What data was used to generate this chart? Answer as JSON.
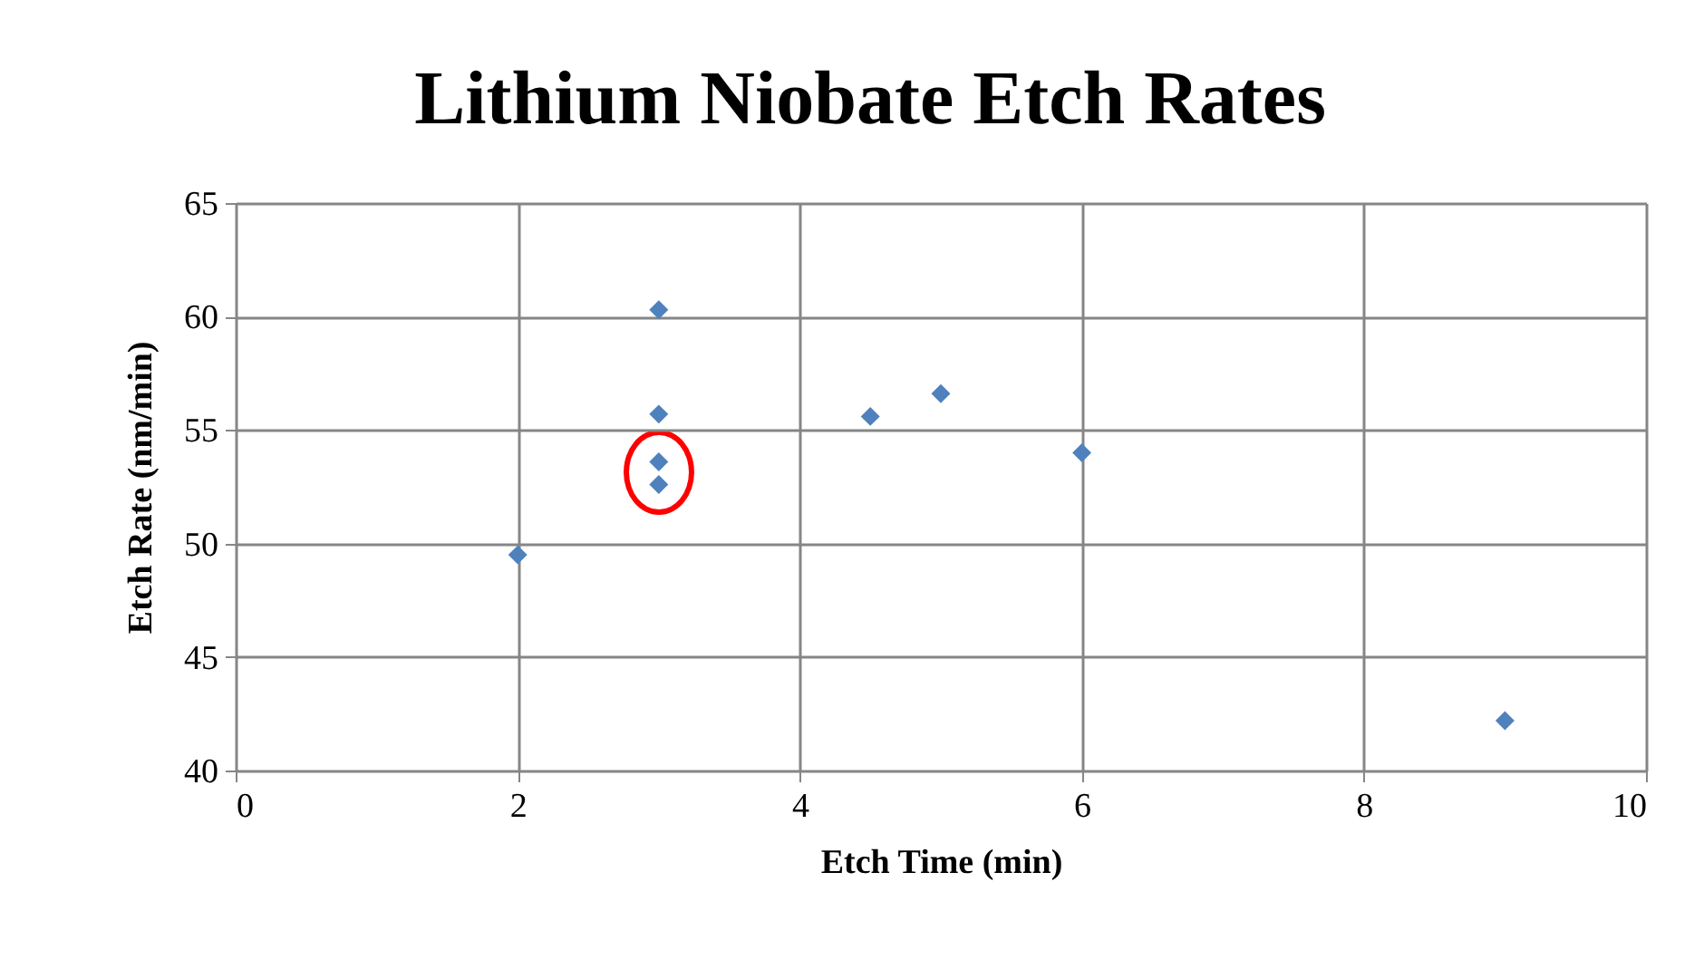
{
  "chart_data": {
    "type": "scatter",
    "title": "Lithium Niobate Etch Rates",
    "xlabel": "Etch Time (min)",
    "ylabel": "Etch Rate (nm/min)",
    "x": [
      2,
      3,
      3,
      3,
      3,
      4.5,
      5,
      6,
      9
    ],
    "series": [
      {
        "color": "#4f81bd",
        "values": [
          49.5,
          60.3,
          55.7,
          53.6,
          52.6,
          55.6,
          56.6,
          54,
          42.2
        ]
      }
    ],
    "xlim": [
      0,
      10
    ],
    "xticks": [
      0,
      2,
      4,
      6,
      8,
      10
    ],
    "ylim": [
      40,
      65
    ],
    "yticks": [
      40,
      45,
      50,
      55,
      60,
      65
    ],
    "grid": true,
    "marker": "diamond"
  }
}
